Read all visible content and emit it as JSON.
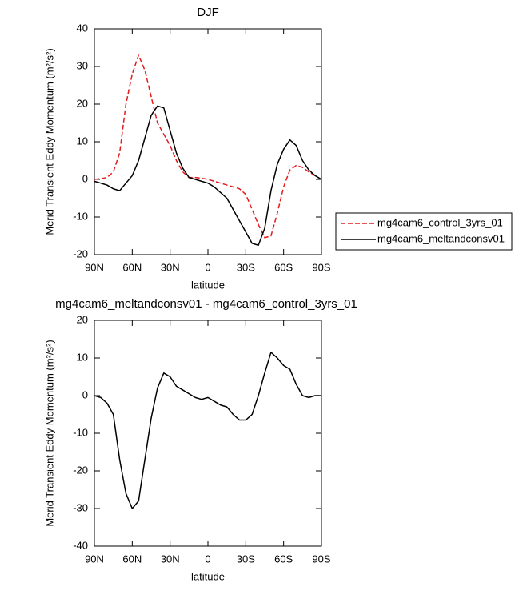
{
  "chart_data": [
    {
      "type": "line",
      "title": "DJF",
      "xlabel": "latitude",
      "ylabel": "Merid Transient Eddy Momentum  (m²/s²)",
      "x": [
        90,
        85,
        80,
        75,
        70,
        65,
        60,
        55,
        50,
        45,
        40,
        35,
        30,
        25,
        20,
        15,
        10,
        5,
        0,
        -5,
        -10,
        -15,
        -20,
        -25,
        -30,
        -35,
        -40,
        -45,
        -50,
        -55,
        -60,
        -65,
        -70,
        -75,
        -80,
        -85,
        -90
      ],
      "xlim": [
        90,
        -90
      ],
      "xticks": [
        {
          "value": 90,
          "label": "90N"
        },
        {
          "value": 60,
          "label": "60N"
        },
        {
          "value": 30,
          "label": "30N"
        },
        0,
        {
          "value": -30,
          "label": "30S"
        },
        {
          "value": -60,
          "label": "60S"
        },
        {
          "value": -90,
          "label": "90S"
        }
      ],
      "ylim": [
        -20,
        40
      ],
      "yticks": [
        -20,
        -10,
        0,
        10,
        20,
        30,
        40
      ],
      "legend": "right",
      "series": [
        {
          "name": "mg4cam6_control_3yrs_01",
          "color": "#e41a1c",
          "style": "dashed",
          "values": [
            0,
            0.2,
            0.5,
            2,
            7,
            20,
            28,
            33,
            29,
            22,
            15,
            12,
            9,
            5,
            2,
            0.5,
            0.5,
            0.3,
            0,
            -0.5,
            -1,
            -1.5,
            -2,
            -2.5,
            -4,
            -8,
            -12,
            -15.5,
            -15,
            -9,
            -2,
            2.5,
            3.7,
            3.2,
            2,
            1,
            0
          ]
        },
        {
          "name": "mg4cam6_meltandconsv01",
          "color": "#000000",
          "style": "solid",
          "values": [
            -0.5,
            -1,
            -1.5,
            -2.5,
            -3,
            -1,
            1,
            5,
            11,
            17,
            19.5,
            19,
            13,
            7,
            3,
            0.5,
            0,
            -0.5,
            -1,
            -2,
            -3.5,
            -5,
            -8,
            -11,
            -14,
            -17,
            -17.5,
            -13,
            -3,
            4,
            8,
            10.5,
            9,
            5,
            2.5,
            1,
            0
          ]
        }
      ]
    },
    {
      "type": "line",
      "title": "mg4cam6_meltandconsv01 - mg4cam6_control_3yrs_01",
      "xlabel": "latitude",
      "ylabel": "Merid Transient Eddy Momentum  (m²/s²)",
      "x": [
        90,
        85,
        80,
        75,
        70,
        65,
        60,
        55,
        50,
        45,
        40,
        35,
        30,
        25,
        20,
        15,
        10,
        5,
        0,
        -5,
        -10,
        -15,
        -20,
        -25,
        -30,
        -35,
        -40,
        -45,
        -50,
        -55,
        -60,
        -65,
        -70,
        -75,
        -80,
        -85,
        -90
      ],
      "xlim": [
        90,
        -90
      ],
      "xticks": [
        {
          "value": 90,
          "label": "90N"
        },
        {
          "value": 60,
          "label": "60N"
        },
        {
          "value": 30,
          "label": "30N"
        },
        0,
        {
          "value": -30,
          "label": "30S"
        },
        {
          "value": -60,
          "label": "60S"
        },
        {
          "value": -90,
          "label": "90S"
        }
      ],
      "ylim": [
        -40,
        20
      ],
      "yticks": [
        -40,
        -30,
        -20,
        -10,
        0,
        10,
        20
      ],
      "series": [
        {
          "color": "#000000",
          "style": "solid",
          "values": [
            0,
            -0.5,
            -2,
            -5,
            -17,
            -26,
            -30,
            -28,
            -17,
            -6,
            2,
            6,
            5,
            2.5,
            1.5,
            0.5,
            -0.5,
            -1,
            -0.5,
            -1.5,
            -2.5,
            -3,
            -5,
            -6.5,
            -6.5,
            -5,
            0,
            6,
            11.5,
            10,
            8,
            7,
            3,
            0,
            -0.5,
            0,
            0
          ]
        }
      ]
    }
  ]
}
